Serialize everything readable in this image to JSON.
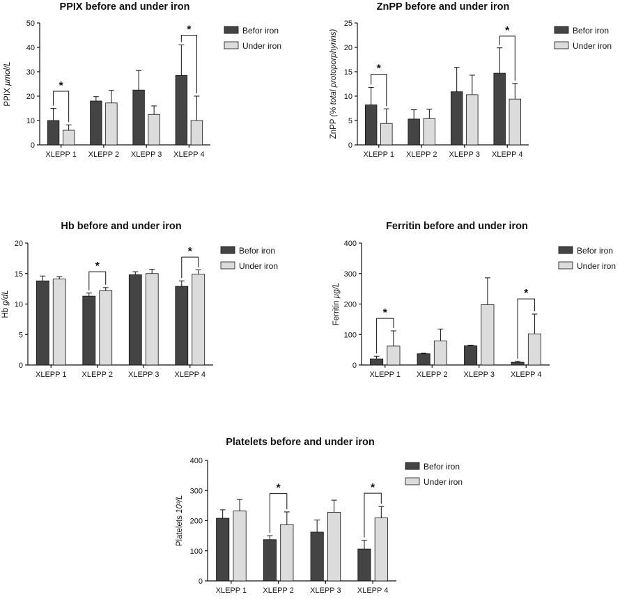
{
  "chart_data": [
    {
      "type": "bar",
      "title": "PPIX before and under iron",
      "ylabel_main": "PPIX ",
      "ylabel_unit": "µmol/L",
      "ylabel_close": "",
      "ylim": [
        0,
        50
      ],
      "yticks": [
        "0",
        "10",
        "20",
        "30",
        "40",
        "50"
      ],
      "categories": [
        "XLEPP 1",
        "XLEPP 2",
        "XLEPP 3",
        "XLEPP 4"
      ],
      "series": [
        {
          "name": "Befor iron",
          "color": "#444444",
          "values": [
            10,
            18,
            22.5,
            28.5
          ],
          "errors": [
            5,
            1.8,
            8,
            12.5
          ]
        },
        {
          "name": "Under iron",
          "color": "#dcdcdc",
          "values": [
            6,
            17.2,
            12.5,
            10
          ],
          "errors": [
            2.2,
            5.2,
            3.5,
            10
          ]
        }
      ],
      "significance": [
        {
          "category": 0,
          "label": "*",
          "y": 22
        },
        {
          "category": 3,
          "label": "*",
          "y": 45
        }
      ]
    },
    {
      "type": "bar",
      "title": "ZnPP before and under iron",
      "ylabel_main": "ZnPP ",
      "ylabel_unit": "(% total protoporphyrins)",
      "ylabel_close": "",
      "ylim": [
        0,
        25
      ],
      "yticks": [
        "0",
        "5",
        "10",
        "15",
        "20",
        "25"
      ],
      "categories": [
        "XLEPP 1",
        "XLEPP 2",
        "XLEPP 3",
        "XLEPP 4"
      ],
      "series": [
        {
          "name": "Befor iron",
          "color": "#444444",
          "values": [
            8.2,
            5.3,
            10.9,
            14.7
          ],
          "errors": [
            3.6,
            1.9,
            5,
            5.2
          ]
        },
        {
          "name": "Under iron",
          "color": "#dcdcdc",
          "values": [
            4.4,
            5.4,
            10.3,
            9.4
          ],
          "errors": [
            3,
            1.9,
            4,
            3.2
          ]
        }
      ],
      "significance": [
        {
          "category": 0,
          "label": "*",
          "y": 14.5
        },
        {
          "category": 3,
          "label": "*",
          "y": 22.3
        }
      ]
    },
    {
      "type": "bar",
      "title": "Hb before and under iron",
      "ylabel_main": "Hb ",
      "ylabel_unit": "g/dL",
      "ylabel_close": "",
      "ylim": [
        0,
        20
      ],
      "yticks": [
        "0",
        "5",
        "10",
        "15",
        "20"
      ],
      "categories": [
        "XLEPP 1",
        "XLEPP 2",
        "XLEPP 3",
        "XLEPP 4"
      ],
      "series": [
        {
          "name": "Befor iron",
          "color": "#444444",
          "values": [
            13.8,
            11.3,
            14.8,
            12.9
          ],
          "errors": [
            0.8,
            0.5,
            0.5,
            0.9
          ]
        },
        {
          "name": "Under iron",
          "color": "#dcdcdc",
          "values": [
            14.1,
            12.2,
            15,
            14.9
          ],
          "errors": [
            0.4,
            0.5,
            0.7,
            0.7
          ]
        }
      ],
      "significance": [
        {
          "category": 1,
          "label": "*",
          "y": 15.3
        },
        {
          "category": 3,
          "label": "*",
          "y": 17.7
        }
      ]
    },
    {
      "type": "bar",
      "title": "Ferritin before and under iron",
      "ylabel_main": "Ferritin ",
      "ylabel_unit": "µg/L",
      "ylabel_close": "",
      "ylim": [
        0,
        400
      ],
      "yticks": [
        "0",
        "100",
        "200",
        "300",
        "400"
      ],
      "categories": [
        "XLEPP 1",
        "XLEPP 2",
        "XLEPP 3",
        "XLEPP 4"
      ],
      "series": [
        {
          "name": "Befor iron",
          "color": "#444444",
          "values": [
            20,
            37,
            63,
            9
          ],
          "errors": [
            9,
            1.5,
            2,
            3
          ]
        },
        {
          "name": "Under iron",
          "color": "#dcdcdc",
          "values": [
            62,
            79,
            198,
            102
          ],
          "errors": [
            50,
            39,
            88,
            65
          ]
        }
      ],
      "significance": [
        {
          "category": 0,
          "label": "*",
          "y": 153
        },
        {
          "category": 3,
          "label": "*",
          "y": 217
        }
      ]
    },
    {
      "type": "bar",
      "title": "Platelets before and under iron",
      "ylabel_main": "Platelets ",
      "ylabel_unit": "10³/L",
      "ylabel_close": "",
      "ylim": [
        0,
        400
      ],
      "yticks": [
        "0",
        "100",
        "200",
        "300",
        "400"
      ],
      "categories": [
        "XLEPP 1",
        "XLEPP 2",
        "XLEPP 3",
        "XLEPP 4"
      ],
      "series": [
        {
          "name": "Befor iron",
          "color": "#444444",
          "values": [
            208,
            137,
            162,
            106
          ],
          "errors": [
            28,
            13,
            40,
            29
          ]
        },
        {
          "name": "Under iron",
          "color": "#dcdcdc",
          "values": [
            232,
            187,
            228,
            209
          ],
          "errors": [
            38,
            42,
            40,
            38
          ]
        }
      ],
      "significance": [
        {
          "category": 1,
          "label": "*",
          "y": 290
        },
        {
          "category": 3,
          "label": "*",
          "y": 291
        }
      ]
    }
  ]
}
